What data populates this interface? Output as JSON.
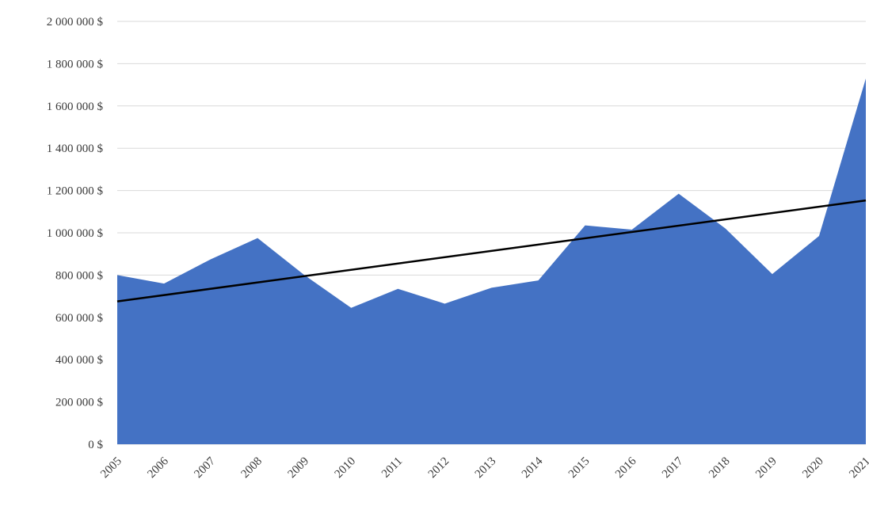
{
  "chart_data": {
    "type": "area",
    "title": "",
    "xlabel": "",
    "ylabel": "",
    "x": [
      "2005",
      "2006",
      "2007",
      "2008",
      "2009",
      "2010",
      "2011",
      "2012",
      "2013",
      "2014",
      "2015",
      "2016",
      "2017",
      "2018",
      "2019",
      "2020",
      "2021"
    ],
    "series": [
      {
        "values": [
          800000,
          760000,
          875000,
          975000,
          800000,
          645000,
          735000,
          665000,
          740000,
          775000,
          1035000,
          1015000,
          1185000,
          1020000,
          805000,
          985000,
          1730000
        ],
        "color": "#4472c4"
      }
    ],
    "trendline": {
      "type": "linear",
      "color": "#000000"
    },
    "ylim": [
      0,
      2000000
    ],
    "yticks": [
      0,
      200000,
      400000,
      600000,
      800000,
      1000000,
      1200000,
      1400000,
      1600000,
      1800000,
      2000000
    ],
    "ytick_labels": [
      "0 $",
      "200 000 $",
      "400 000 $",
      "600 000 $",
      "800 000 $",
      "1 000 000 $",
      "1 200 000 $",
      "1 400 000 $",
      "1 600 000 $",
      "1 800 000 $",
      "2 000 000 $"
    ],
    "grid": true,
    "legend": "none"
  }
}
